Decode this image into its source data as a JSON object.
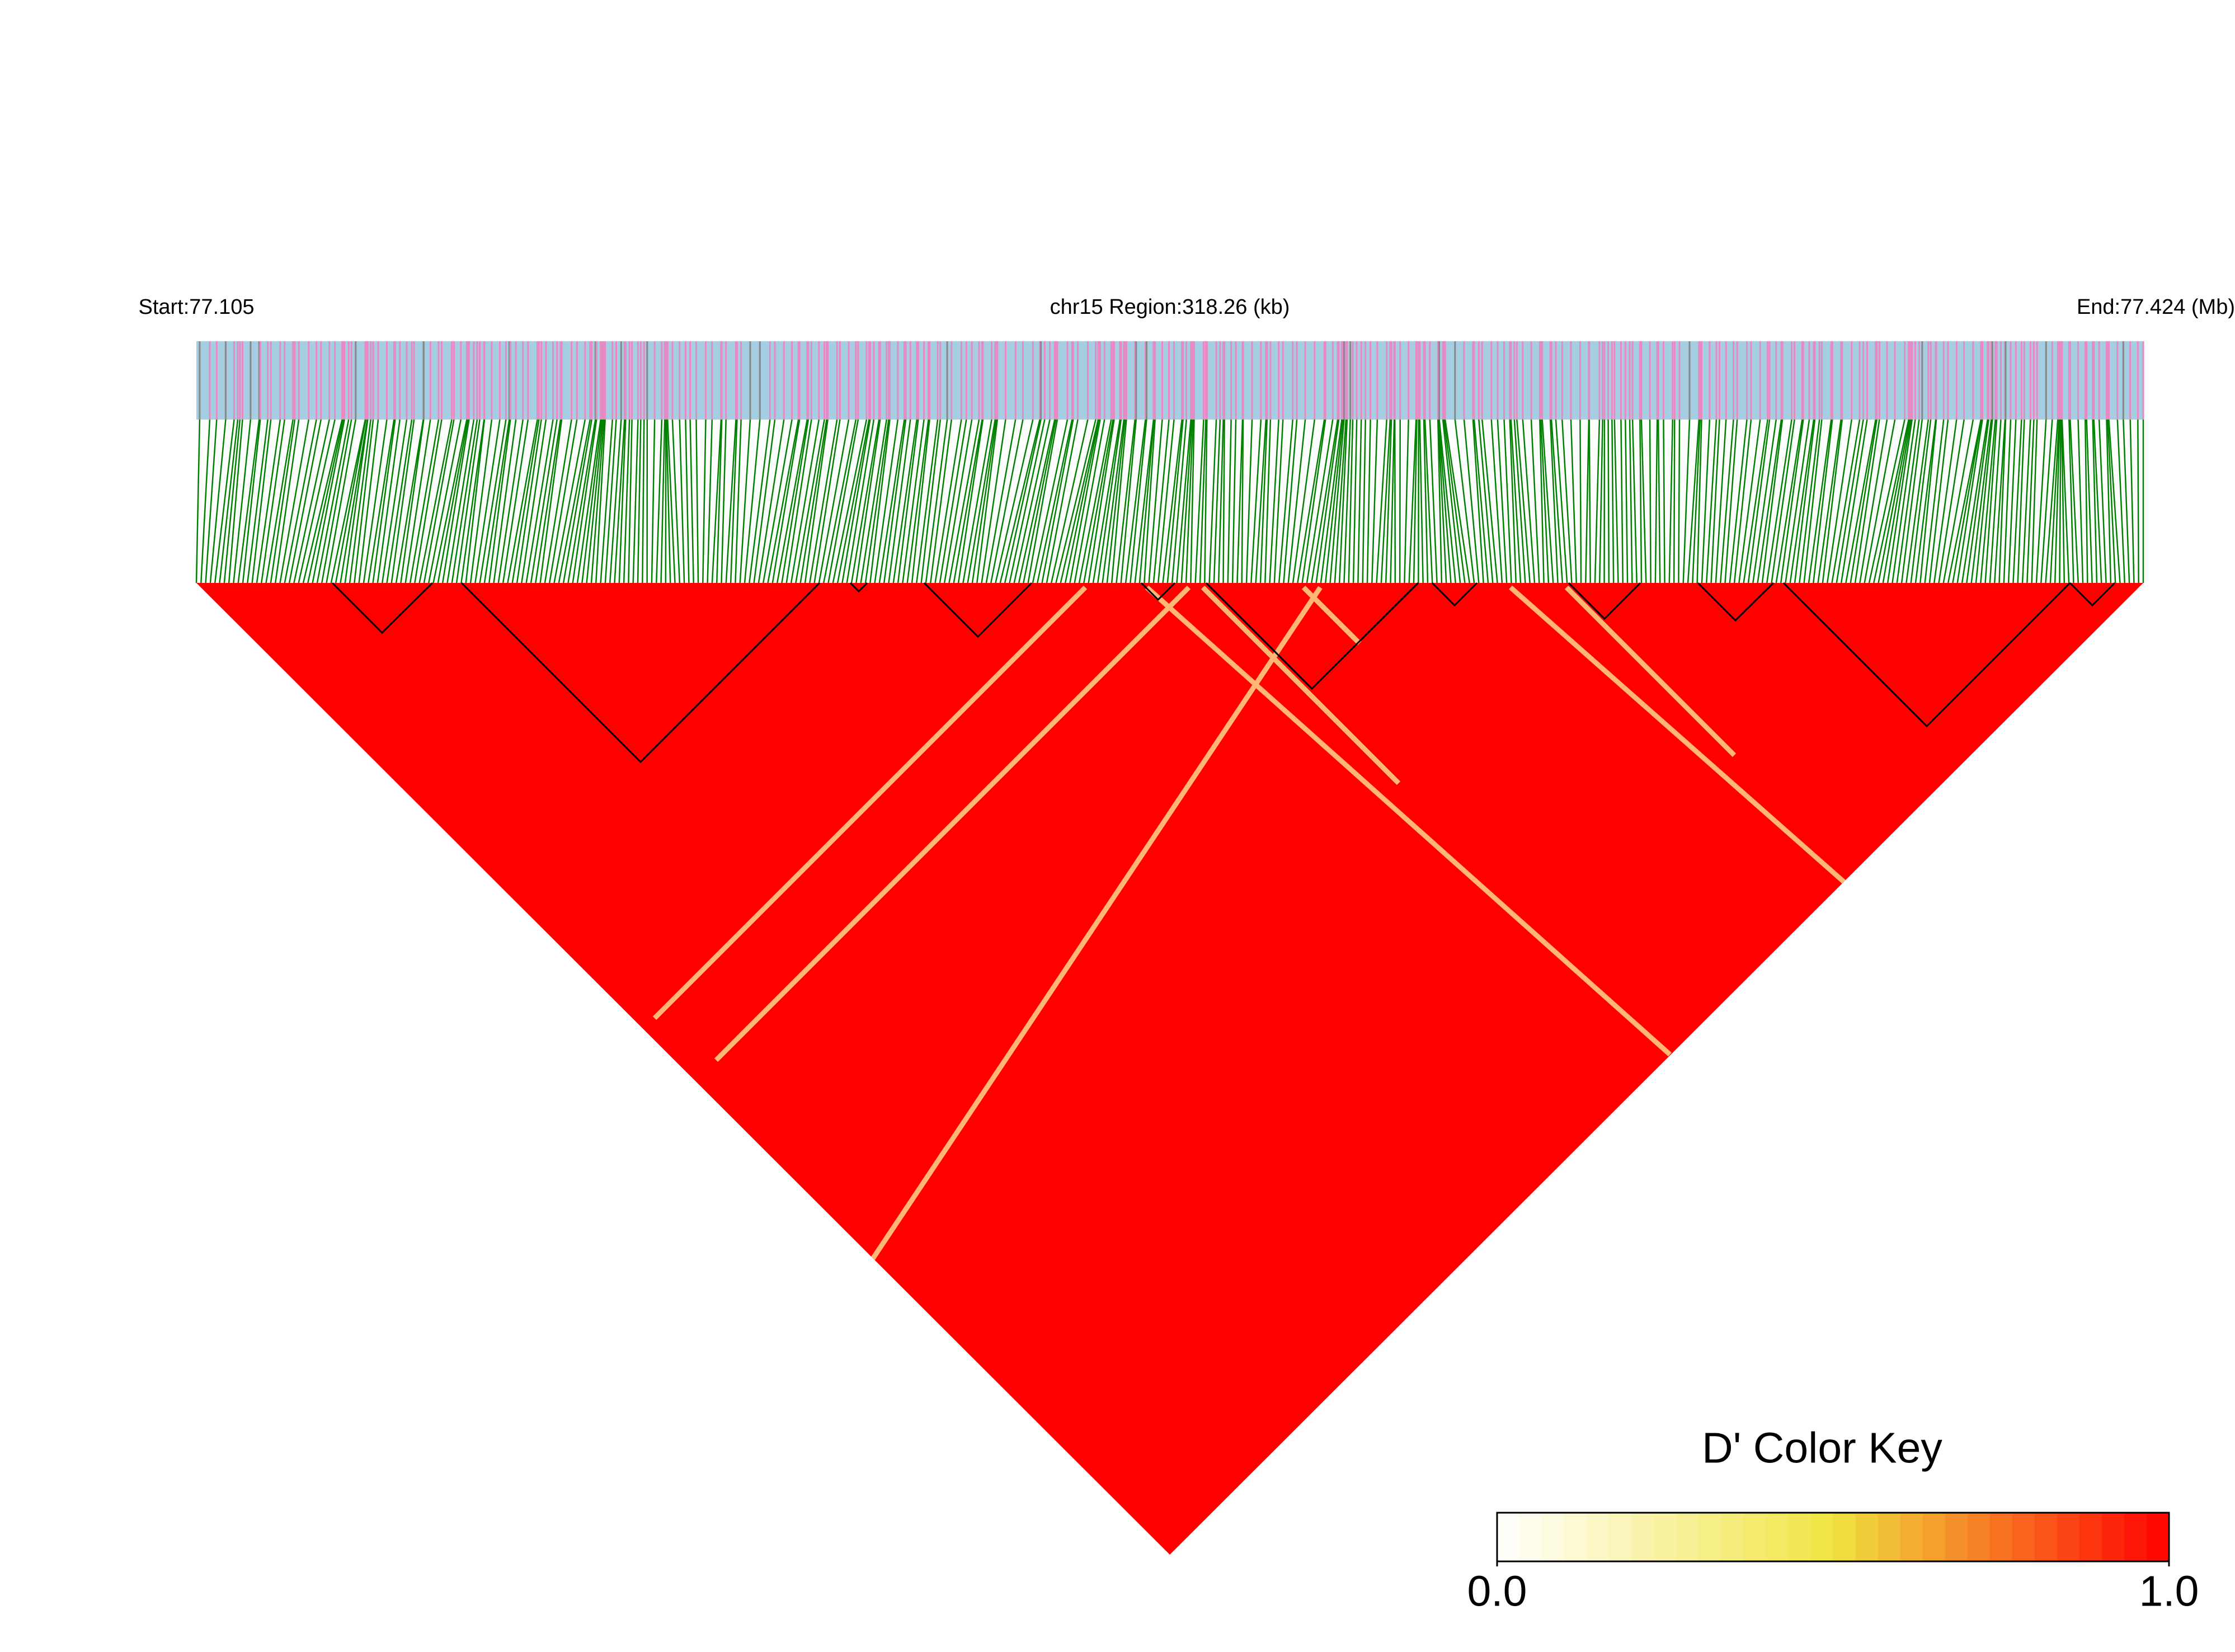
{
  "chart_data": {
    "type": "heatmap",
    "start_label": "Start:77.105",
    "title": "chr15 Region:318.26 (kb)",
    "end_label": "End:77.424 (Mb)",
    "colorbar": {
      "title": "D' Color Key",
      "lim": [
        0,
        1
      ],
      "ticks": [
        {
          "value": 0,
          "label": "0.0"
        },
        {
          "value": 1,
          "label": "1.0"
        }
      ],
      "colors": [
        "#ffffff",
        "#f0e442",
        "#ff0000"
      ]
    },
    "cell_color": "#ff0000",
    "track_color": "#a6cee3",
    "snp_color": "#e78ac3",
    "connector_color": "#008000"
  }
}
